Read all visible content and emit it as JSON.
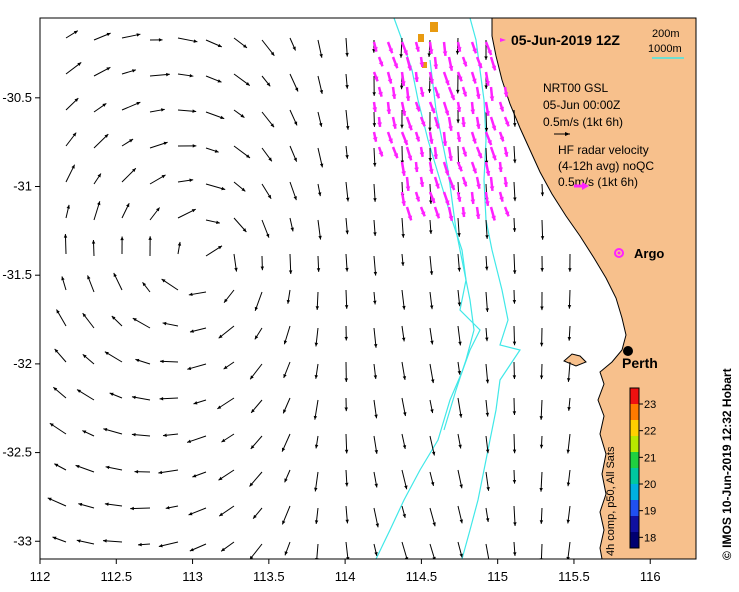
{
  "title": "05-Jun-2019 12Z",
  "scale_legend": {
    "line1": "200m",
    "line2": "1000m",
    "color": "#40e8e8"
  },
  "nrt": {
    "line1": "NRT00 GSL",
    "line2": "05-Jun 00:00Z",
    "line3": "0.5m/s (1kt 6h)"
  },
  "hf": {
    "line1": "HF radar velocity",
    "line2": "(4-12h avg) noQC",
    "line3": "0.5m/s (1kt 6h)"
  },
  "argo_label": "Argo",
  "city_label": "Perth",
  "side_caption": "© IMOS 10-Jun-2019 12:32 Hobart",
  "colorbar": {
    "caption": "4h comp, p50, All Sats",
    "ticks": [
      "18",
      "19",
      "20",
      "21",
      "22",
      "23"
    ],
    "min": 17.6,
    "max": 23.6
  },
  "axes": {
    "x_ticks": [
      "112",
      "112.5",
      "113",
      "113.5",
      "114",
      "114.5",
      "115",
      "115.5",
      "116"
    ],
    "y_ticks": [
      "-30.5",
      "-31",
      "-31.5",
      "-32",
      "-32.5",
      "-33"
    ],
    "xlim": [
      112,
      116.3
    ],
    "ylim": [
      -33.1,
      -30.05
    ]
  },
  "colors": {
    "land": "#f7c08c",
    "isobath": "#40e8e8",
    "hf_arrow": "#ff22ff",
    "model_arrow": "#000000"
  }
}
